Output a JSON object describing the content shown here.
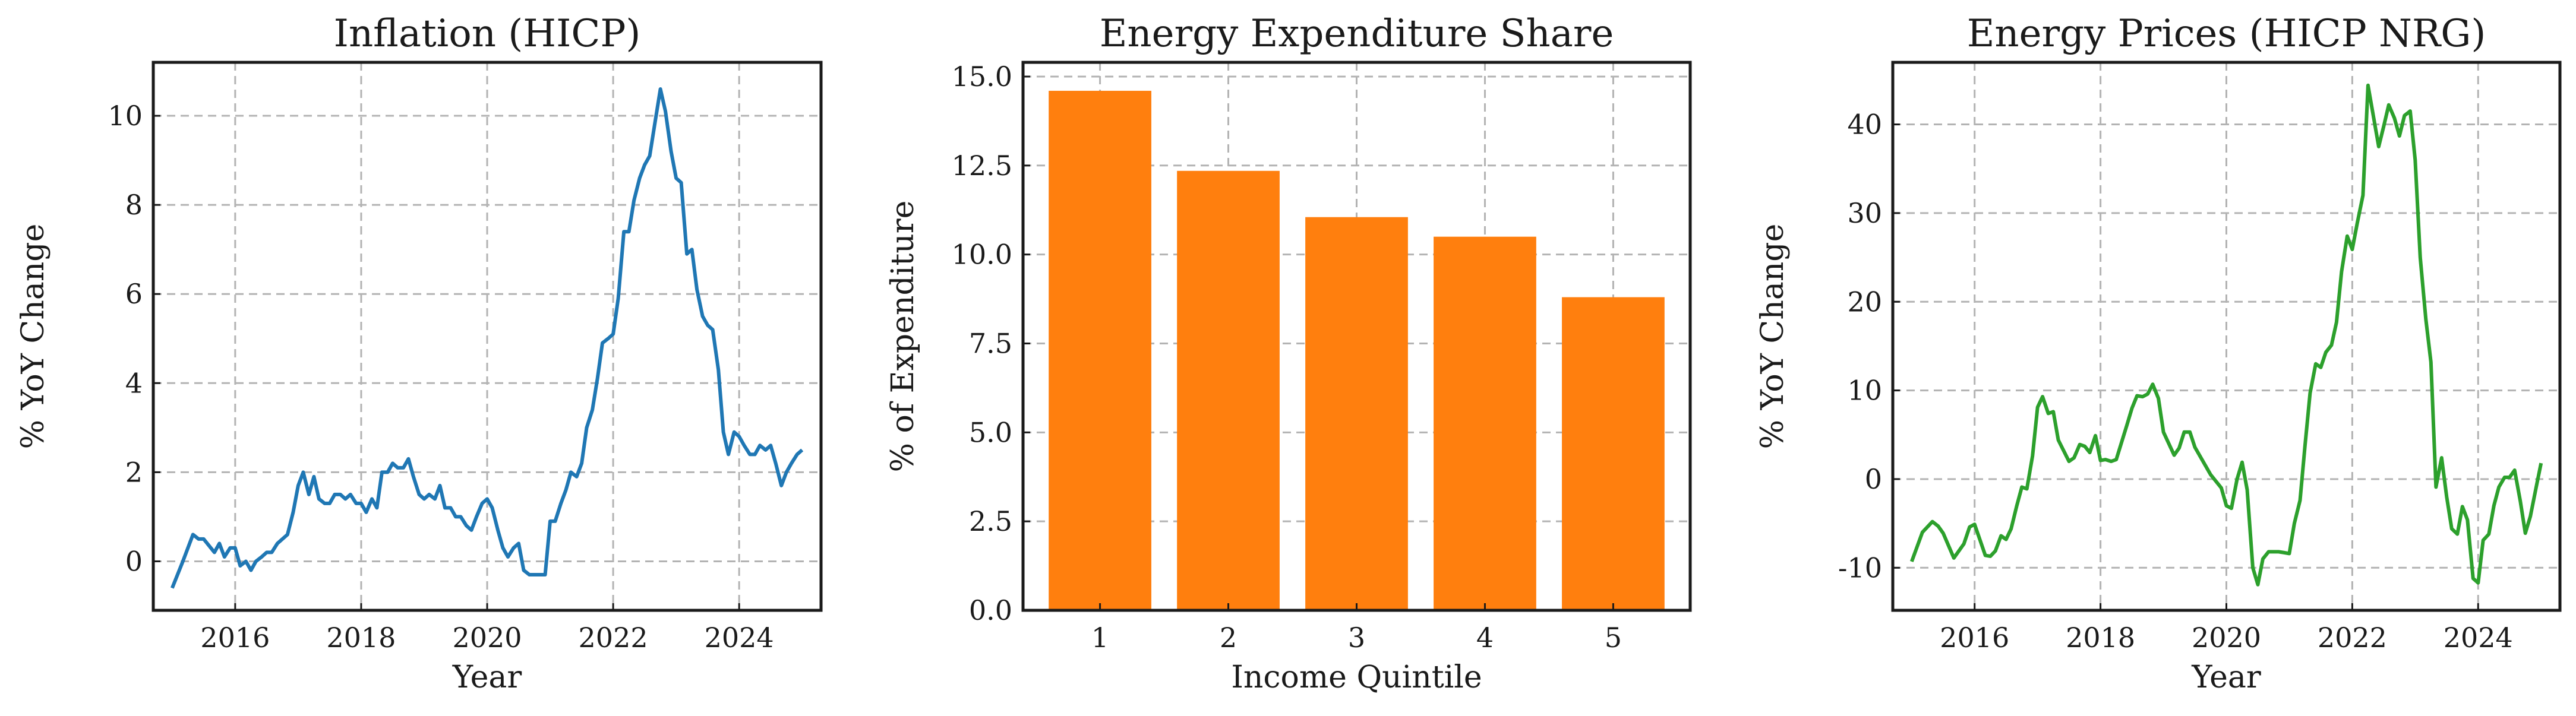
{
  "chart_data": [
    {
      "type": "line",
      "title": "Inflation (HICP)",
      "xlabel": "Year",
      "ylabel": "% YoY Change",
      "xlim": [
        2014.7,
        2025.3
      ],
      "ylim": [
        -1.1,
        11.2
      ],
      "xticks": [
        2016,
        2018,
        2020,
        2022,
        2024
      ],
      "yticks": [
        0,
        2,
        4,
        6,
        8,
        10
      ],
      "grid": true,
      "color": "#1f77b4",
      "series": [
        {
          "x": [
            2015.0,
            2015.17,
            2015.33,
            2015.42,
            2015.5,
            2015.67,
            2015.75,
            2015.83,
            2015.92,
            2016.0,
            2016.08,
            2016.17,
            2016.25,
            2016.33,
            2016.42,
            2016.5,
            2016.58,
            2016.67,
            2016.75,
            2016.83,
            2016.92,
            2017.0,
            2017.08,
            2017.17,
            2017.25,
            2017.33,
            2017.42,
            2017.5,
            2017.58,
            2017.67,
            2017.75,
            2017.83,
            2017.92,
            2018.0,
            2018.08,
            2018.17,
            2018.25,
            2018.33,
            2018.42,
            2018.5,
            2018.58,
            2018.67,
            2018.75,
            2018.83,
            2018.92,
            2019.0,
            2019.08,
            2019.17,
            2019.25,
            2019.33,
            2019.42,
            2019.5,
            2019.58,
            2019.67,
            2019.75,
            2019.83,
            2019.92,
            2020.0,
            2020.08,
            2020.17,
            2020.25,
            2020.33,
            2020.42,
            2020.5,
            2020.58,
            2020.67,
            2020.75,
            2020.83,
            2020.92,
            2021.0,
            2021.08,
            2021.17,
            2021.25,
            2021.33,
            2021.42,
            2021.5,
            2021.58,
            2021.67,
            2021.75,
            2021.83,
            2021.92,
            2022.0,
            2022.08,
            2022.17,
            2022.25,
            2022.33,
            2022.42,
            2022.5,
            2022.58,
            2022.67,
            2022.75,
            2022.83,
            2022.92,
            2023.0,
            2023.08,
            2023.17,
            2023.25,
            2023.33,
            2023.42,
            2023.5,
            2023.58,
            2023.67,
            2023.75,
            2023.83,
            2023.92,
            2024.0,
            2024.08,
            2024.17,
            2024.25,
            2024.33,
            2024.42,
            2024.5,
            2024.58,
            2024.67,
            2024.75,
            2024.83,
            2024.92,
            2025.0
          ],
          "y": [
            -0.6,
            0.0,
            0.6,
            0.5,
            0.5,
            0.2,
            0.4,
            0.1,
            0.3,
            0.3,
            -0.1,
            0.0,
            -0.2,
            0.0,
            0.1,
            0.2,
            0.2,
            0.4,
            0.5,
            0.6,
            1.1,
            1.7,
            2.0,
            1.5,
            1.9,
            1.4,
            1.3,
            1.3,
            1.5,
            1.5,
            1.4,
            1.5,
            1.3,
            1.3,
            1.1,
            1.4,
            1.2,
            2.0,
            2.0,
            2.2,
            2.1,
            2.1,
            2.3,
            1.9,
            1.5,
            1.4,
            1.5,
            1.4,
            1.7,
            1.2,
            1.2,
            1.0,
            1.0,
            0.8,
            0.7,
            1.0,
            1.3,
            1.4,
            1.2,
            0.7,
            0.3,
            0.1,
            0.3,
            0.4,
            -0.2,
            -0.3,
            -0.3,
            -0.3,
            -0.3,
            0.9,
            0.9,
            1.3,
            1.6,
            2.0,
            1.9,
            2.2,
            3.0,
            3.4,
            4.1,
            4.9,
            5.0,
            5.1,
            5.9,
            7.4,
            7.4,
            8.1,
            8.6,
            8.9,
            9.1,
            9.9,
            10.6,
            10.1,
            9.2,
            8.6,
            8.5,
            6.9,
            7.0,
            6.1,
            5.5,
            5.3,
            5.2,
            4.3,
            2.9,
            2.4,
            2.9,
            2.8,
            2.6,
            2.4,
            2.4,
            2.6,
            2.5,
            2.6,
            2.2,
            1.7,
            2.0,
            2.2,
            2.4,
            2.5
          ]
        }
      ]
    },
    {
      "type": "bar",
      "title": "Energy Expenditure Share",
      "xlabel": "Income Quintile",
      "ylabel": "% of Expenditure",
      "categories": [
        "1",
        "2",
        "3",
        "4",
        "5"
      ],
      "values": [
        14.6,
        12.35,
        11.05,
        10.5,
        8.8
      ],
      "ylim": [
        0,
        15.4
      ],
      "yticks": [
        "0.0",
        "2.5",
        "5.0",
        "7.5",
        "10.0",
        "12.5",
        "15.0"
      ],
      "grid": true,
      "color": "#ff7f0e"
    },
    {
      "type": "line",
      "title": "Energy Prices (HICP NRG)",
      "xlabel": "Year",
      "ylabel": "% YoY Change",
      "xlim": [
        2014.7,
        2025.3
      ],
      "ylim": [
        -14.8,
        47.0
      ],
      "xticks": [
        2016,
        2018,
        2020,
        2022,
        2024
      ],
      "yticks": [
        -10,
        0,
        10,
        20,
        30,
        40
      ],
      "grid": true,
      "color": "#2ca02c",
      "series": [
        {
          "x": [
            2015.0,
            2015.17,
            2015.33,
            2015.42,
            2015.5,
            2015.67,
            2015.83,
            2015.92,
            2016.0,
            2016.17,
            2016.25,
            2016.33,
            2016.42,
            2016.5,
            2016.58,
            2016.67,
            2016.75,
            2016.83,
            2016.92,
            2017.0,
            2017.08,
            2017.17,
            2017.25,
            2017.33,
            2017.5,
            2017.58,
            2017.67,
            2017.75,
            2017.83,
            2017.92,
            2018.0,
            2018.08,
            2018.17,
            2018.25,
            2018.42,
            2018.5,
            2018.58,
            2018.67,
            2018.75,
            2018.83,
            2018.92,
            2019.0,
            2019.17,
            2019.25,
            2019.33,
            2019.42,
            2019.5,
            2019.75,
            2019.92,
            2020.0,
            2020.08,
            2020.17,
            2020.25,
            2020.33,
            2020.42,
            2020.5,
            2020.58,
            2020.67,
            2020.83,
            2020.92,
            2021.0,
            2021.08,
            2021.17,
            2021.25,
            2021.33,
            2021.42,
            2021.5,
            2021.58,
            2021.67,
            2021.75,
            2021.83,
            2021.92,
            2022.0,
            2022.08,
            2022.17,
            2022.25,
            2022.42,
            2022.5,
            2022.58,
            2022.67,
            2022.75,
            2022.83,
            2022.92,
            2023.0,
            2023.08,
            2023.17,
            2023.25,
            2023.33,
            2023.42,
            2023.5,
            2023.58,
            2023.67,
            2023.75,
            2023.83,
            2023.92,
            2024.0,
            2024.08,
            2024.17,
            2024.25,
            2024.33,
            2024.42,
            2024.5,
            2024.58,
            2024.67,
            2024.75,
            2024.83,
            2024.92,
            2025.0
          ],
          "y": [
            -9.3,
            -6.0,
            -4.8,
            -5.3,
            -6.1,
            -8.9,
            -7.3,
            -5.4,
            -5.1,
            -8.6,
            -8.7,
            -8.1,
            -6.4,
            -6.8,
            -5.6,
            -3.0,
            -0.9,
            -1.1,
            2.6,
            8.1,
            9.3,
            7.4,
            7.6,
            4.4,
            2.0,
            2.4,
            3.9,
            3.7,
            3.0,
            4.9,
            2.1,
            2.2,
            2.0,
            2.2,
            6.1,
            8.0,
            9.4,
            9.3,
            9.6,
            10.7,
            9.1,
            5.3,
            2.7,
            3.5,
            5.3,
            5.3,
            3.6,
            0.5,
            -1.0,
            -3.0,
            -3.3,
            0.0,
            1.9,
            -1.2,
            -10.0,
            -11.9,
            -9.0,
            -8.2,
            -8.2,
            -8.3,
            -8.4,
            -5.0,
            -2.4,
            3.8,
            9.7,
            13.0,
            12.6,
            14.3,
            15.1,
            17.7,
            23.4,
            27.4,
            25.9,
            28.9,
            32.0,
            44.4,
            37.5,
            39.8,
            42.2,
            40.7,
            38.7,
            41.0,
            41.5,
            36.0,
            25.0,
            18.0,
            13.2,
            -0.9,
            2.4,
            -2.0,
            -5.6,
            -6.2,
            -3.1,
            -4.6,
            -11.2,
            -11.7,
            -6.9,
            -6.2,
            -3.0,
            -0.9,
            0.2,
            0.2,
            1.0,
            -2.5,
            -6.1,
            -4.2,
            -1.0,
            1.8
          ]
        }
      ]
    }
  ]
}
